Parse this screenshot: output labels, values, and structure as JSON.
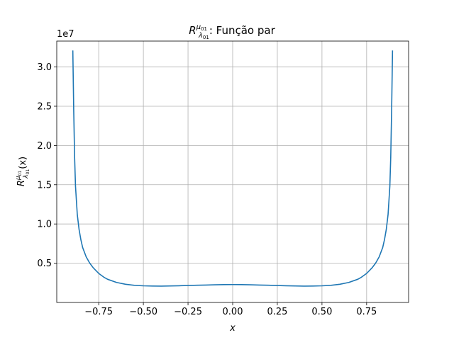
{
  "chart_data": {
    "type": "line",
    "title": {
      "base": "R",
      "sup": "μ",
      "sup_sub": "01",
      "sub": "λ",
      "sub_sub": "01",
      "rest": ": Função par"
    },
    "xlabel": "x",
    "ylabel": {
      "base": "R",
      "sup": "μ",
      "sup_sub": "01",
      "sub": "λ",
      "sub_sub": "01",
      "arg": "(x)"
    },
    "y_offset_text": "1e7",
    "xlim": [
      -0.985,
      0.985
    ],
    "ylim": [
      0.0,
      3.33
    ],
    "y_units_note": "y values are in units of 1e7",
    "grid": true,
    "x_ticks": [
      -0.75,
      -0.5,
      -0.25,
      0.0,
      0.25,
      0.5,
      0.75
    ],
    "x_tick_labels": [
      "−0.75",
      "−0.50",
      "−0.25",
      "0.00",
      "0.25",
      "0.50",
      "0.75"
    ],
    "y_ticks": [
      0.5,
      1.0,
      1.5,
      2.0,
      2.5,
      3.0
    ],
    "y_tick_labels": [
      "0.5",
      "1.0",
      "1.5",
      "2.0",
      "2.5",
      "3.0"
    ],
    "series": [
      {
        "color": "#1f77b4",
        "x": [
          -0.895,
          -0.89,
          -0.885,
          -0.88,
          -0.87,
          -0.86,
          -0.85,
          -0.84,
          -0.82,
          -0.8,
          -0.78,
          -0.75,
          -0.72,
          -0.7,
          -0.65,
          -0.6,
          -0.55,
          -0.5,
          -0.45,
          -0.4,
          -0.35,
          -0.3,
          -0.25,
          -0.2,
          -0.15,
          -0.1,
          -0.05,
          0.0,
          0.05,
          0.1,
          0.15,
          0.2,
          0.25,
          0.3,
          0.35,
          0.4,
          0.45,
          0.5,
          0.55,
          0.6,
          0.65,
          0.7,
          0.72,
          0.75,
          0.78,
          0.8,
          0.82,
          0.84,
          0.85,
          0.86,
          0.87,
          0.88,
          0.885,
          0.89,
          0.895
        ],
        "y": [
          3.21,
          2.45,
          1.85,
          1.48,
          1.12,
          0.93,
          0.8,
          0.7,
          0.58,
          0.5,
          0.44,
          0.37,
          0.32,
          0.295,
          0.255,
          0.232,
          0.218,
          0.212,
          0.209,
          0.208,
          0.21,
          0.213,
          0.216,
          0.219,
          0.222,
          0.225,
          0.227,
          0.228,
          0.227,
          0.225,
          0.222,
          0.219,
          0.216,
          0.213,
          0.21,
          0.208,
          0.209,
          0.212,
          0.218,
          0.232,
          0.255,
          0.295,
          0.32,
          0.37,
          0.44,
          0.5,
          0.58,
          0.7,
          0.8,
          0.93,
          1.12,
          1.48,
          1.85,
          2.45,
          3.21
        ]
      }
    ]
  }
}
